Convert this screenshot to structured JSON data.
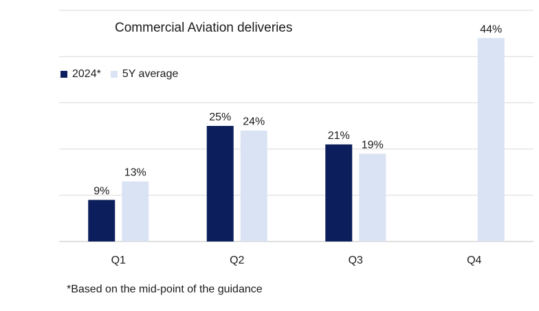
{
  "chart_data": {
    "type": "bar",
    "title": "Commercial Aviation deliveries",
    "categories": [
      "Q1",
      "Q2",
      "Q3",
      "Q4"
    ],
    "series": [
      {
        "name": "2024*",
        "values": [
          9,
          25,
          21,
          null
        ],
        "labels": [
          "9%",
          "25%",
          "21%",
          ""
        ],
        "color": "#0c1f5c"
      },
      {
        "name": "5Y average",
        "values": [
          13,
          24,
          19,
          44
        ],
        "labels": [
          "13%",
          "24%",
          "19%",
          "44%"
        ],
        "color": "#dae3f3"
      }
    ],
    "unit": "%",
    "ylim": [
      0,
      50
    ],
    "grid": true,
    "legend_position": "top-left"
  },
  "footnote": "*Based on the mid-point of the guidance"
}
